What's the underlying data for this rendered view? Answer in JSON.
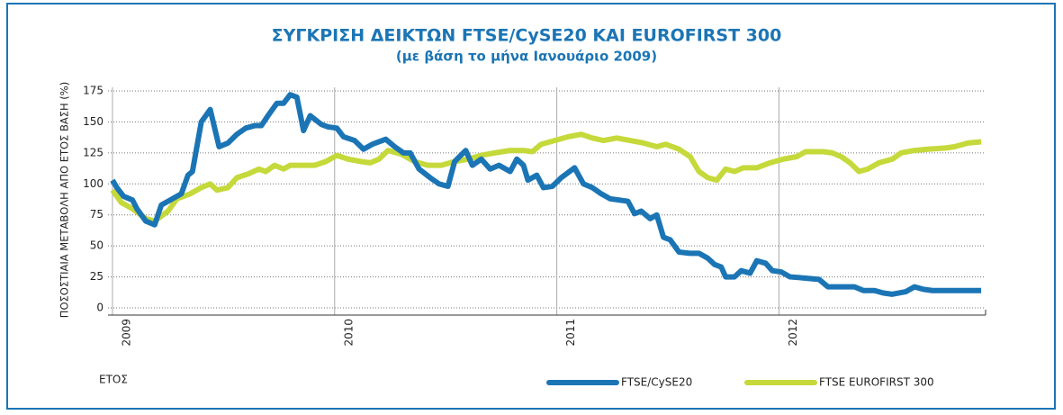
{
  "chart_data": {
    "type": "line",
    "title": "ΣΥΓΚΡΙΣΗ ΔΕΙΚΤΩΝ FTSE/CySE20 ΚΑΙ EUROFIRST 300",
    "subtitle": "(με βάση το μήνα Ιανουάριο 2009)",
    "ylabel": "ΠΟΣΟΣΤΙΑΙΑ ΜΕΤΑΒΟΛΗ ΑΠΟ ΕΤΟΣ ΒΑΣΗ (%)",
    "xlabel": "ΕΤΟΣ",
    "xlim": [
      2008.98,
      2012.93
    ],
    "xticks": [
      2009,
      2010,
      2011,
      2012
    ],
    "ylim": [
      0,
      175
    ],
    "yticks": [
      0,
      25,
      50,
      75,
      100,
      125,
      150,
      175
    ],
    "grid": true,
    "legend": "bottom-right",
    "series": [
      {
        "name": "FTSE/CySE20",
        "color": "#1b75b5",
        "x": [
          2009.0,
          2009.02,
          2009.05,
          2009.09,
          2009.11,
          2009.15,
          2009.19,
          2009.22,
          2009.27,
          2009.31,
          2009.34,
          2009.36,
          2009.4,
          2009.44,
          2009.48,
          2009.52,
          2009.56,
          2009.6,
          2009.64,
          2009.67,
          2009.7,
          2009.74,
          2009.77,
          2009.8,
          2009.83,
          2009.86,
          2009.89,
          2009.94,
          2009.97,
          2010.01,
          2010.04,
          2010.09,
          2010.13,
          2010.17,
          2010.23,
          2010.27,
          2010.31,
          2010.34,
          2010.38,
          2010.43,
          2010.47,
          2010.51,
          2010.54,
          2010.59,
          2010.62,
          2010.66,
          2010.7,
          2010.74,
          2010.79,
          2010.82,
          2010.85,
          2010.87,
          2010.91,
          2010.94,
          2010.98,
          2011.02,
          2011.08,
          2011.12,
          2011.16,
          2011.2,
          2011.24,
          2011.28,
          2011.32,
          2011.35,
          2011.38,
          2011.42,
          2011.45,
          2011.48,
          2011.51,
          2011.55,
          2011.6,
          2011.64,
          2011.68,
          2011.71,
          2011.74,
          2011.76,
          2011.8,
          2011.83,
          2011.87,
          2011.9,
          2011.94,
          2011.97,
          2012.01,
          2012.05,
          2012.12,
          2012.18,
          2012.22,
          2012.28,
          2012.34,
          2012.38,
          2012.43,
          2012.47,
          2012.51,
          2012.57,
          2012.61,
          2012.65,
          2012.69,
          2012.75,
          2012.91
        ],
        "values": [
          103,
          97,
          90,
          87,
          80,
          70,
          67,
          83,
          88,
          92,
          107,
          110,
          150,
          160,
          130,
          133,
          140,
          145,
          147,
          147,
          155,
          165,
          165,
          172,
          170,
          143,
          155,
          148,
          146,
          145,
          138,
          135,
          128,
          132,
          136,
          130,
          125,
          125,
          112,
          105,
          100,
          98,
          118,
          127,
          115,
          120,
          112,
          115,
          110,
          120,
          115,
          103,
          107,
          97,
          98,
          105,
          113,
          100,
          97,
          92,
          88,
          87,
          86,
          76,
          78,
          72,
          75,
          57,
          55,
          45,
          44,
          44,
          40,
          35,
          33,
          25,
          25,
          30,
          28,
          38,
          36,
          30,
          29,
          25,
          24,
          23,
          17,
          17,
          17,
          14,
          14,
          12,
          11,
          13,
          17,
          15,
          14,
          14,
          14
        ]
      },
      {
        "name": "FTSE EUROFIRST 300",
        "color": "#c5d93a",
        "x": [
          2009.0,
          2009.04,
          2009.09,
          2009.15,
          2009.19,
          2009.25,
          2009.29,
          2009.35,
          2009.4,
          2009.44,
          2009.47,
          2009.52,
          2009.56,
          2009.61,
          2009.66,
          2009.69,
          2009.73,
          2009.77,
          2009.8,
          2009.87,
          2009.91,
          2009.96,
          2010.01,
          2010.06,
          2010.12,
          2010.16,
          2010.2,
          2010.24,
          2010.3,
          2010.36,
          2010.42,
          2010.48,
          2010.54,
          2010.6,
          2010.66,
          2010.72,
          2010.79,
          2010.85,
          2010.89,
          2010.93,
          2010.99,
          2011.05,
          2011.11,
          2011.16,
          2011.21,
          2011.27,
          2011.33,
          2011.39,
          2011.45,
          2011.49,
          2011.55,
          2011.6,
          2011.64,
          2011.68,
          2011.72,
          2011.76,
          2011.8,
          2011.84,
          2011.9,
          2011.96,
          2012.02,
          2012.08,
          2012.12,
          2012.2,
          2012.24,
          2012.28,
          2012.32,
          2012.36,
          2012.4,
          2012.45,
          2012.51,
          2012.55,
          2012.61,
          2012.67,
          2012.75,
          2012.79,
          2012.85,
          2012.91
        ],
        "values": [
          95,
          85,
          80,
          72,
          70,
          78,
          88,
          92,
          97,
          100,
          95,
          97,
          105,
          108,
          112,
          110,
          115,
          112,
          115,
          115,
          115,
          118,
          123,
          120,
          118,
          117,
          120,
          127,
          124,
          118,
          115,
          115,
          118,
          120,
          123,
          125,
          127,
          127,
          126,
          132,
          135,
          138,
          140,
          137,
          135,
          137,
          135,
          133,
          130,
          132,
          128,
          122,
          110,
          105,
          103,
          112,
          110,
          113,
          113,
          117,
          120,
          122,
          126,
          126,
          125,
          122,
          117,
          110,
          112,
          117,
          120,
          125,
          127,
          128,
          129,
          130,
          133,
          134
        ]
      }
    ]
  }
}
